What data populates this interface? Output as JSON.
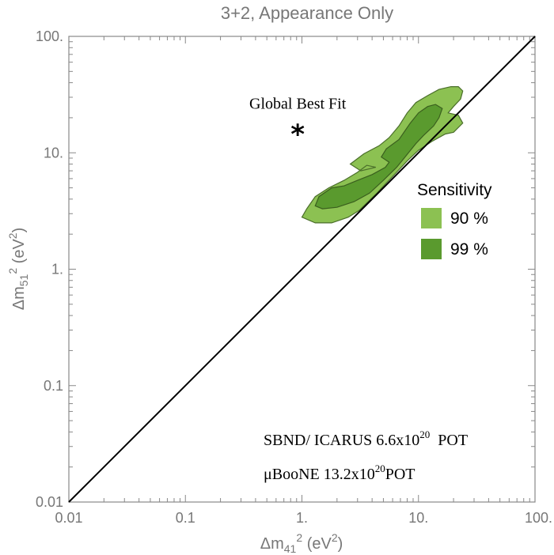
{
  "chart_data": {
    "type": "contour",
    "title": "3+2, Appearance Only",
    "xlabel": {
      "base": "Δm",
      "sub": "41",
      "sup": "2",
      "unit": "(eV",
      "unit_sup": "2",
      "unit_close": ")"
    },
    "ylabel": {
      "base": "Δm",
      "sub": "51",
      "sup": "2",
      "unit": "(eV",
      "unit_sup": "2",
      "unit_close": ")"
    },
    "xscale": "log",
    "yscale": "log",
    "xlim": [
      0.01,
      100
    ],
    "ylim": [
      0.01,
      100
    ],
    "xticks": [
      {
        "value": 0.01,
        "label": "0.01"
      },
      {
        "value": 0.1,
        "label": "0.1"
      },
      {
        "value": 1,
        "label": "1."
      },
      {
        "value": 10,
        "label": "10."
      },
      {
        "value": 100,
        "label": "100."
      }
    ],
    "yticks": [
      {
        "value": 0.01,
        "label": "0.01"
      },
      {
        "value": 0.1,
        "label": "0.1"
      },
      {
        "value": 1,
        "label": "1."
      },
      {
        "value": 10,
        "label": "10."
      },
      {
        "value": 100,
        "label": "100."
      }
    ],
    "diagonal": {
      "from": [
        0.01,
        0.01
      ],
      "to": [
        100,
        100
      ]
    },
    "best_fit": {
      "label": "Global Best Fit",
      "x": 0.92,
      "y": 17
    },
    "legend": {
      "title": "Sensitivity",
      "position": "right",
      "entries": [
        {
          "label": "90 %",
          "color": "#8cc152"
        },
        {
          "label": "99 %",
          "color": "#5a9a2e"
        }
      ]
    },
    "annotations": [
      {
        "text": "SBND/ ICARUS 6.6x10",
        "sup": "20",
        "after": "  POT"
      },
      {
        "text": "μBooNE 13.2x10",
        "sup": "20",
        "after": "POT"
      }
    ],
    "regions": [
      {
        "name": "90 %",
        "color": "#8cc152",
        "edge": "#4a6e2a",
        "points": [
          [
            1.0,
            2.8
          ],
          [
            1.1,
            3.3
          ],
          [
            1.3,
            4.2
          ],
          [
            1.7,
            5.0
          ],
          [
            2.3,
            5.8
          ],
          [
            3.0,
            6.8
          ],
          [
            3.6,
            7.8
          ],
          [
            4.3,
            7.5
          ],
          [
            3.2,
            7.0
          ],
          [
            2.6,
            8.0
          ],
          [
            3.4,
            9.8
          ],
          [
            4.6,
            11.5
          ],
          [
            5.6,
            13.5
          ],
          [
            6.8,
            17
          ],
          [
            8.0,
            22
          ],
          [
            9.5,
            27
          ],
          [
            12,
            31
          ],
          [
            15,
            35
          ],
          [
            19,
            37
          ],
          [
            22,
            37
          ],
          [
            24,
            34
          ],
          [
            23,
            29
          ],
          [
            20,
            25
          ],
          [
            18,
            22
          ],
          [
            22,
            21
          ],
          [
            24,
            18
          ],
          [
            20,
            15
          ],
          [
            17,
            14.5
          ],
          [
            13,
            12.5
          ],
          [
            10,
            10.5
          ],
          [
            8,
            8.5
          ],
          [
            6.5,
            6.8
          ],
          [
            5.3,
            5.5
          ],
          [
            4.4,
            4.5
          ],
          [
            3.7,
            3.8
          ],
          [
            3.1,
            3.2
          ],
          [
            2.5,
            2.8
          ],
          [
            1.8,
            2.5
          ],
          [
            1.3,
            2.5
          ]
        ]
      },
      {
        "name": "99 %",
        "color": "#5a9a2e",
        "edge": "#3a5f1e",
        "points": [
          [
            1.3,
            3.5
          ],
          [
            1.4,
            4.2
          ],
          [
            1.8,
            5.0
          ],
          [
            2.3,
            5.2
          ],
          [
            3.0,
            5.8
          ],
          [
            4.0,
            6.5
          ],
          [
            5.2,
            7.5
          ],
          [
            5.6,
            8.3
          ],
          [
            4.8,
            9.2
          ],
          [
            5.3,
            10.8
          ],
          [
            6.8,
            13
          ],
          [
            8.5,
            18
          ],
          [
            10,
            22
          ],
          [
            12,
            25
          ],
          [
            14,
            26
          ],
          [
            16,
            24
          ],
          [
            15,
            20
          ],
          [
            13.5,
            17
          ],
          [
            11,
            14
          ],
          [
            9.5,
            12
          ],
          [
            8.2,
            10
          ],
          [
            6.5,
            7.5
          ],
          [
            5,
            5.8
          ],
          [
            3.8,
            4.5
          ],
          [
            2.8,
            3.8
          ],
          [
            2,
            3.4
          ],
          [
            1.5,
            3.3
          ]
        ]
      }
    ]
  }
}
